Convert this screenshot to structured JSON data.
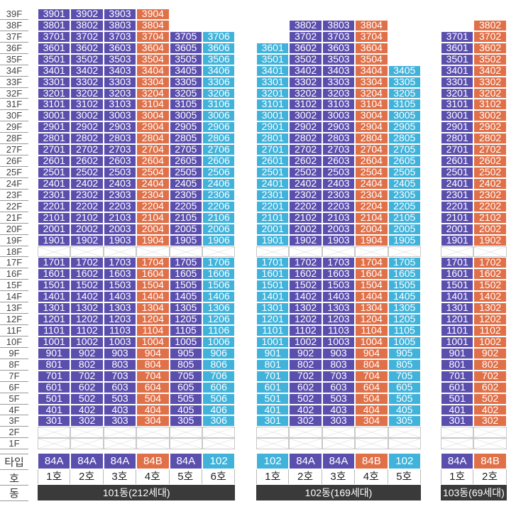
{
  "colors": {
    "84A": "#5b4fae",
    "84B": "#e07048",
    "102": "#41b3db"
  },
  "row_labels": {
    "type": "타입",
    "unit": "호",
    "building": "동"
  },
  "floors": [
    "39F",
    "38F",
    "37F",
    "36F",
    "35F",
    "34F",
    "33F",
    "32F",
    "31F",
    "30F",
    "29F",
    "28F",
    "27F",
    "26F",
    "25F",
    "24F",
    "23F",
    "22F",
    "21F",
    "20F",
    "19F",
    "18F",
    "17F",
    "16F",
    "15F",
    "14F",
    "13F",
    "12F",
    "11F",
    "10F",
    "9F",
    "8F",
    "7F",
    "6F",
    "5F",
    "4F",
    "3F",
    "2F",
    "1F"
  ],
  "buildings": [
    {
      "name": "101동(212세대)",
      "types": [
        "84A",
        "84A",
        "84A",
        "84B",
        "84A",
        "102"
      ],
      "units": [
        "1호",
        "2호",
        "3호",
        "4호",
        "5호",
        "6호"
      ],
      "top_floor": [
        39,
        39,
        39,
        39,
        37,
        37
      ],
      "empty_floors": [
        18,
        2,
        1
      ]
    },
    {
      "name": "102동(169세대)",
      "types": [
        "102",
        "84A",
        "84A",
        "84B",
        "102"
      ],
      "units": [
        "1호",
        "2호",
        "3호",
        "4호",
        "5호"
      ],
      "top_floor": [
        36,
        38,
        38,
        38,
        34
      ],
      "empty_floors": [
        18,
        2,
        1
      ]
    },
    {
      "name": "103동(69세대)",
      "types": [
        "84A",
        "84B"
      ],
      "units": [
        "1호",
        "2호"
      ],
      "top_floor": [
        37,
        38
      ],
      "empty_floors": [
        18,
        2,
        1
      ]
    }
  ]
}
